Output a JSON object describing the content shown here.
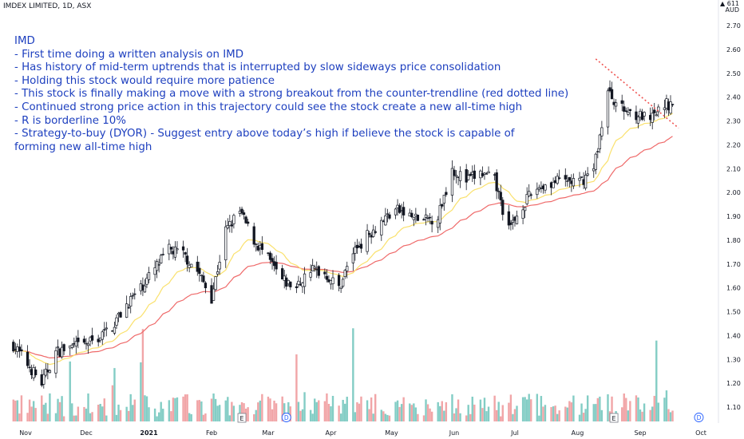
{
  "header": {
    "symbol_line": "IMDEX LIMITED, 1D, ASX"
  },
  "annotation": {
    "title": "IMD",
    "lines": [
      "- First time doing a written analysis on IMD",
      "- Has history of mid-term uptrends that is interrupted by slow sideways price consolidation",
      "- Holding this stock would require more patience",
      "- This stock is finally making a move with a strong breakout from the counter-trendline (red dotted line)",
      "- Continued strong price action in this trajectory could see the stock create a new all-time high",
      "- R is borderline 10%",
      "- Strategy-to-buy (DYOR) - Suggest entry above today’s high if believe the stock is capable of forming new all-time high"
    ]
  },
  "price_axis": {
    "currency_top": "▲ 611",
    "currency": "AUD",
    "ticks": [
      "1.10",
      "1.20",
      "1.30",
      "1.40",
      "1.50",
      "1.60",
      "1.70",
      "1.80",
      "1.90",
      "2.00",
      "2.10",
      "2.20",
      "2.30",
      "2.40",
      "2.50",
      "2.60",
      "2.70"
    ]
  },
  "time_axis": {
    "labels": [
      "Nov",
      "Dec",
      "2021",
      "Feb",
      "Mar",
      "Apr",
      "May",
      "Jun",
      "Jul",
      "Aug",
      "Sep",
      "Oct"
    ]
  },
  "event_markers": {
    "earnings": "E",
    "dividend": "D"
  },
  "colors": {
    "up_volume": "#83cdc5",
    "down_volume": "#f1a5a7",
    "ema_short": "#fae16d",
    "ema_long": "#ef6a6a",
    "trendline": "#ef5350",
    "candle": "#131722",
    "note_text": "#1d3fbf"
  },
  "chart_data": {
    "type": "candlestick",
    "ylim": [
      1.05,
      2.72
    ],
    "anchors": [
      {
        "date": "Oct 26",
        "close": 1.36
      },
      {
        "date": "Nov 2",
        "close": 1.28
      },
      {
        "date": "Nov 9",
        "close": 1.2
      },
      {
        "date": "Nov 16",
        "close": 1.33
      },
      {
        "date": "Nov 23",
        "close": 1.35
      },
      {
        "date": "Nov 30",
        "close": 1.36
      },
      {
        "date": "Dec 7",
        "close": 1.39
      },
      {
        "date": "Dec 14",
        "close": 1.44
      },
      {
        "date": "Dec 21",
        "close": 1.53
      },
      {
        "date": "Dec 28",
        "close": 1.6
      },
      {
        "date": "Jan 4",
        "close": 1.68
      },
      {
        "date": "Jan 11",
        "close": 1.76
      },
      {
        "date": "Jan 18",
        "close": 1.74
      },
      {
        "date": "Jan 25",
        "close": 1.67
      },
      {
        "date": "Feb 1",
        "close": 1.56
      },
      {
        "date": "Feb 8",
        "close": 1.84
      },
      {
        "date": "Feb 15",
        "close": 1.92
      },
      {
        "date": "Feb 22",
        "close": 1.8
      },
      {
        "date": "Mar 1",
        "close": 1.72
      },
      {
        "date": "Mar 8",
        "close": 1.63
      },
      {
        "date": "Mar 15",
        "close": 1.6
      },
      {
        "date": "Mar 22",
        "close": 1.68
      },
      {
        "date": "Mar 29",
        "close": 1.66
      },
      {
        "date": "Apr 5",
        "close": 1.6
      },
      {
        "date": "Apr 12",
        "close": 1.75
      },
      {
        "date": "Apr 19",
        "close": 1.82
      },
      {
        "date": "Apr 26",
        "close": 1.88
      },
      {
        "date": "May 3",
        "close": 1.93
      },
      {
        "date": "May 10",
        "close": 1.9
      },
      {
        "date": "May 17",
        "close": 1.88
      },
      {
        "date": "May 24",
        "close": 1.9
      },
      {
        "date": "May 31",
        "close": 2.1
      },
      {
        "date": "Jun 7",
        "close": 2.05
      },
      {
        "date": "Jun 14",
        "close": 2.08
      },
      {
        "date": "Jun 21",
        "close": 2.05
      },
      {
        "date": "Jun 28",
        "close": 1.84
      },
      {
        "date": "Jul 5",
        "close": 1.95
      },
      {
        "date": "Jul 12",
        "close": 2.02
      },
      {
        "date": "Jul 19",
        "close": 2.04
      },
      {
        "date": "Jul 26",
        "close": 2.05
      },
      {
        "date": "Aug 2",
        "close": 2.04
      },
      {
        "date": "Aug 9",
        "close": 2.1
      },
      {
        "date": "Aug 16",
        "close": 2.42
      },
      {
        "date": "Aug 23",
        "close": 2.35
      },
      {
        "date": "Aug 30",
        "close": 2.33
      },
      {
        "date": "Sep 6",
        "close": 2.3
      },
      {
        "date": "Sep 13",
        "close": 2.37
      }
    ],
    "trendline": {
      "start": {
        "date": "Aug 10",
        "price": 2.56
      },
      "end": {
        "date": "Sep 20",
        "price": 2.27
      }
    },
    "series": [
      {
        "name": "EMA short"
      },
      {
        "name": "EMA long"
      }
    ],
    "earnings_dates": [
      "Feb 16",
      "Aug 19"
    ],
    "dividend_dates": [
      "Mar 10",
      "Sep 30"
    ]
  }
}
